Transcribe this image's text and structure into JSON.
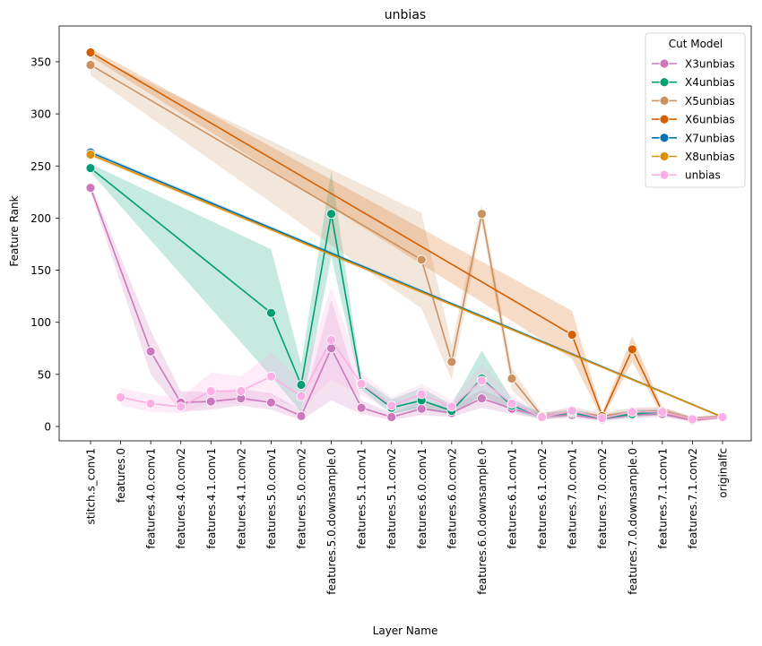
{
  "chart_data": {
    "type": "line",
    "title": "unbias",
    "xlabel": "Layer Name",
    "ylabel": "Feature Rank",
    "ylim": [
      -15,
      385
    ],
    "yticks": [
      0,
      50,
      100,
      150,
      200,
      250,
      300,
      350
    ],
    "grid": false,
    "legend_position": "top-right",
    "legend_title": "Cut Model",
    "categories": [
      "stitch.s_conv1",
      "features.0",
      "features.4.0.conv1",
      "features.4.0.conv2",
      "features.4.1.conv1",
      "features.4.1.conv2",
      "features.5.0.conv1",
      "features.5.0.conv2",
      "features.5.0.downsample.0",
      "features.5.1.conv1",
      "features.5.1.conv2",
      "features.6.0.conv1",
      "features.6.0.conv2",
      "features.6.0.downsample.0",
      "features.6.1.conv1",
      "features.6.1.conv2",
      "features.7.0.conv1",
      "features.7.0.conv2",
      "features.7.0.downsample.0",
      "features.7.1.conv1",
      "features.7.1.conv2",
      "originalfc"
    ],
    "series": [
      {
        "name": "X3unbias",
        "color": "#cc78bc",
        "values": [
          229,
          null,
          72,
          23,
          24,
          27,
          23,
          10,
          75,
          18,
          9,
          17,
          13,
          27,
          17,
          10,
          11,
          7,
          11,
          12,
          6,
          9
        ],
        "band_lower": [
          225,
          null,
          50,
          14,
          16,
          20,
          16,
          6,
          25,
          12,
          6,
          11,
          9,
          18,
          12,
          7,
          8,
          5,
          8,
          9,
          4,
          8
        ],
        "band_upper": [
          233,
          null,
          92,
          34,
          33,
          36,
          32,
          16,
          122,
          25,
          13,
          24,
          19,
          35,
          23,
          13,
          15,
          10,
          15,
          16,
          9,
          11
        ]
      },
      {
        "name": "X4unbias",
        "color": "#029e73",
        "values": [
          248,
          null,
          null,
          null,
          null,
          null,
          109,
          40,
          204,
          40,
          18,
          25,
          15,
          46,
          20,
          10,
          13,
          8,
          12,
          14,
          7,
          9
        ],
        "band_lower": [
          244,
          null,
          null,
          null,
          null,
          null,
          48,
          14,
          163,
          35,
          12,
          18,
          11,
          30,
          15,
          7,
          10,
          6,
          9,
          11,
          5,
          8
        ],
        "band_upper": [
          252,
          null,
          null,
          null,
          null,
          null,
          170,
          60,
          246,
          46,
          26,
          37,
          21,
          73,
          26,
          13,
          16,
          11,
          16,
          17,
          9,
          11
        ]
      },
      {
        "name": "X5unbias",
        "color": "#ca9161",
        "values": [
          347,
          null,
          null,
          null,
          null,
          null,
          null,
          null,
          null,
          null,
          null,
          160,
          62,
          204,
          46,
          10,
          14,
          10,
          14,
          15,
          7,
          9
        ],
        "band_lower": [
          337,
          null,
          null,
          null,
          null,
          null,
          null,
          null,
          null,
          null,
          null,
          113,
          45,
          195,
          35,
          7,
          10,
          7,
          10,
          11,
          5,
          8
        ],
        "band_upper": [
          357,
          null,
          null,
          null,
          null,
          null,
          null,
          null,
          null,
          null,
          null,
          205,
          78,
          214,
          56,
          13,
          18,
          13,
          18,
          19,
          9,
          11
        ]
      },
      {
        "name": "X6unbias",
        "color": "#d55e00",
        "values": [
          359,
          null,
          null,
          null,
          null,
          null,
          null,
          null,
          null,
          null,
          null,
          null,
          null,
          null,
          null,
          null,
          88,
          10,
          74,
          14,
          7,
          9
        ],
        "band_lower": [
          355,
          null,
          null,
          null,
          null,
          null,
          null,
          null,
          null,
          null,
          null,
          null,
          null,
          null,
          null,
          null,
          65,
          7,
          62,
          11,
          5,
          8
        ],
        "band_upper": [
          363,
          null,
          null,
          null,
          null,
          null,
          null,
          null,
          null,
          null,
          null,
          null,
          null,
          null,
          null,
          null,
          111,
          13,
          87,
          18,
          9,
          11
        ]
      },
      {
        "name": "X7unbias",
        "color": "#0173b2",
        "values": [
          263,
          null,
          null,
          null,
          null,
          null,
          null,
          null,
          null,
          null,
          null,
          null,
          null,
          null,
          null,
          null,
          null,
          null,
          null,
          null,
          null,
          9
        ],
        "band_lower": [
          261,
          null,
          null,
          null,
          null,
          null,
          null,
          null,
          null,
          null,
          null,
          null,
          null,
          null,
          null,
          null,
          null,
          null,
          null,
          null,
          null,
          8
        ],
        "band_upper": [
          265,
          null,
          null,
          null,
          null,
          null,
          null,
          null,
          null,
          null,
          null,
          null,
          null,
          null,
          null,
          null,
          null,
          null,
          null,
          null,
          null,
          10
        ]
      },
      {
        "name": "X8unbias",
        "color": "#de8f05",
        "values": [
          261,
          null,
          null,
          null,
          null,
          null,
          null,
          null,
          null,
          null,
          null,
          null,
          null,
          null,
          null,
          null,
          null,
          null,
          null,
          null,
          null,
          9
        ],
        "band_lower": [
          259,
          null,
          null,
          null,
          null,
          null,
          null,
          null,
          null,
          null,
          null,
          null,
          null,
          null,
          null,
          null,
          null,
          null,
          null,
          null,
          null,
          8
        ],
        "band_upper": [
          263,
          null,
          null,
          null,
          null,
          null,
          null,
          null,
          null,
          null,
          null,
          null,
          null,
          null,
          null,
          null,
          null,
          null,
          null,
          null,
          null,
          10
        ]
      },
      {
        "name": "unbias",
        "color": "#fbafe4",
        "values": [
          null,
          28,
          22,
          19,
          34,
          34,
          48,
          29,
          83,
          41,
          20,
          31,
          19,
          44,
          22,
          9,
          15,
          8,
          14,
          14,
          7,
          9
        ],
        "band_lower": [
          null,
          20,
          14,
          13,
          22,
          22,
          26,
          17,
          45,
          30,
          14,
          21,
          14,
          29,
          16,
          7,
          11,
          6,
          11,
          11,
          5,
          8
        ],
        "band_upper": [
          null,
          37,
          31,
          27,
          52,
          48,
          71,
          44,
          134,
          52,
          28,
          41,
          25,
          60,
          29,
          12,
          20,
          11,
          18,
          18,
          9,
          11
        ]
      }
    ]
  }
}
